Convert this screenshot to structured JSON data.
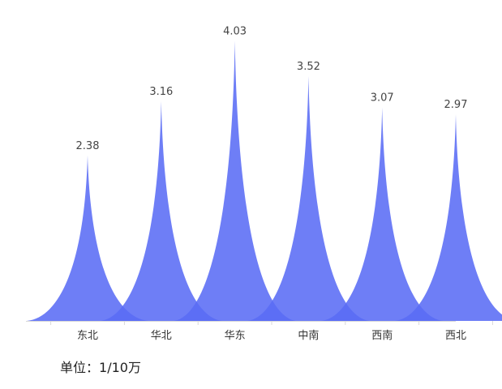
{
  "chart_data": {
    "type": "area",
    "categories": [
      "东北",
      "华北",
      "华东",
      "中南",
      "西南",
      "西北"
    ],
    "values": [
      2.38,
      3.16,
      4.03,
      3.52,
      3.07,
      2.97
    ],
    "ylim": [
      0,
      4.5
    ],
    "grid": false,
    "legend": "none",
    "color": "#5a6cf5",
    "unit_note": {
      "label": "单位",
      "separator": "：",
      "value": "1/10万"
    }
  }
}
